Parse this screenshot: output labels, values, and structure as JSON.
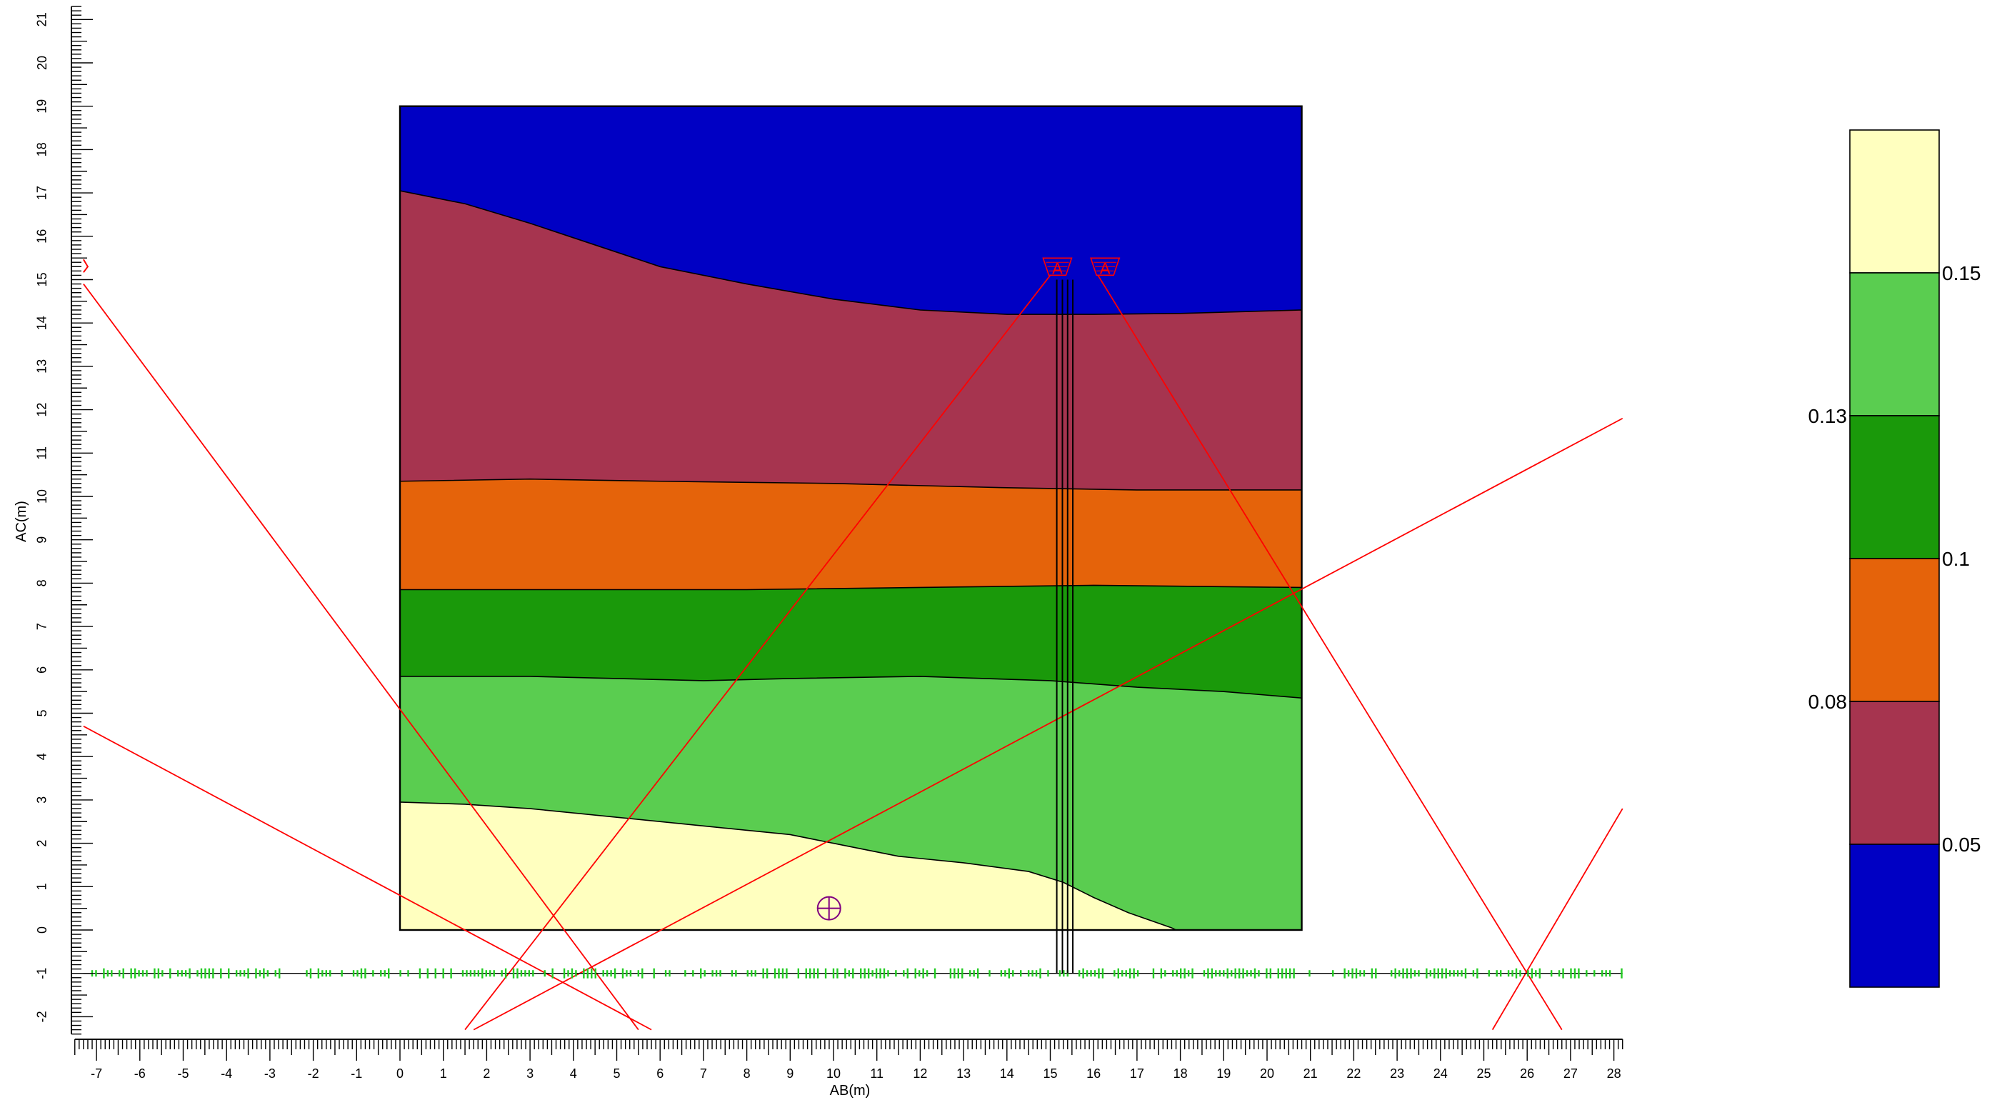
{
  "chart_data": {
    "type": "heatmap",
    "xlabel": "AB(m)",
    "ylabel": "AC(m)",
    "xlim": [
      -7.5,
      28.2
    ],
    "ylim": [
      -2.4,
      21.3
    ],
    "x_ticks": [
      "-7",
      "-6",
      "-5",
      "-4",
      "-3",
      "-2",
      "-1",
      "0",
      "1",
      "2",
      "3",
      "4",
      "5",
      "6",
      "7",
      "8",
      "9",
      "10",
      "11",
      "12",
      "13",
      "14",
      "15",
      "16",
      "17",
      "18",
      "19",
      "20",
      "21",
      "22",
      "23",
      "24",
      "25",
      "26",
      "27",
      "28"
    ],
    "y_ticks": [
      "-2",
      "-1",
      "0",
      "1",
      "2",
      "3",
      "4",
      "5",
      "6",
      "7",
      "8",
      "9",
      "10",
      "11",
      "12",
      "13",
      "14",
      "15",
      "16",
      "17",
      "18",
      "19",
      "20",
      "21"
    ],
    "domain": {
      "x": [
        0,
        20.8
      ],
      "y": [
        0,
        19
      ]
    },
    "colors": [
      "#0000c4",
      "#a6344f",
      "#e5630a",
      "#1a990a",
      "#5acd50",
      "#ffffbf"
    ],
    "layers": [
      {
        "name": "level-1",
        "upper": [
          [
            0,
            19
          ],
          [
            20.8,
            19
          ]
        ]
      },
      {
        "name": "level-2",
        "upper": [
          [
            0,
            17.05
          ],
          [
            1.5,
            16.75
          ],
          [
            3,
            16.3
          ],
          [
            4.5,
            15.8
          ],
          [
            6,
            15.3
          ],
          [
            8,
            14.9
          ],
          [
            10,
            14.55
          ],
          [
            12,
            14.3
          ],
          [
            14,
            14.2
          ],
          [
            16,
            14.2
          ],
          [
            18,
            14.22
          ],
          [
            20.8,
            14.3
          ]
        ]
      },
      {
        "name": "level-3",
        "upper": [
          [
            0,
            10.35
          ],
          [
            3,
            10.4
          ],
          [
            6,
            10.35
          ],
          [
            10,
            10.3
          ],
          [
            14,
            10.2
          ],
          [
            17,
            10.15
          ],
          [
            20.8,
            10.15
          ]
        ]
      },
      {
        "name": "level-4",
        "upper": [
          [
            0,
            7.85
          ],
          [
            4,
            7.85
          ],
          [
            8,
            7.85
          ],
          [
            12,
            7.9
          ],
          [
            16,
            7.95
          ],
          [
            20.8,
            7.9
          ]
        ]
      },
      {
        "name": "level-5",
        "upper": [
          [
            0,
            5.85
          ],
          [
            3,
            5.85
          ],
          [
            5,
            5.8
          ],
          [
            7,
            5.75
          ],
          [
            9,
            5.8
          ],
          [
            12,
            5.85
          ],
          [
            15,
            5.75
          ],
          [
            17,
            5.6
          ],
          [
            19,
            5.5
          ],
          [
            20.8,
            5.35
          ]
        ]
      },
      {
        "name": "level-6",
        "upper": [
          [
            0,
            2.95
          ],
          [
            1.5,
            2.9
          ],
          [
            3,
            2.8
          ],
          [
            5,
            2.6
          ],
          [
            7,
            2.4
          ],
          [
            9,
            2.2
          ],
          [
            10.5,
            1.9
          ],
          [
            11.5,
            1.7
          ],
          [
            13,
            1.55
          ],
          [
            14.5,
            1.35
          ],
          [
            15.3,
            1.1
          ],
          [
            16,
            0.75
          ],
          [
            16.8,
            0.4
          ],
          [
            17.8,
            0.05
          ],
          [
            17.9,
            0
          ]
        ]
      }
    ],
    "rays": [
      {
        "x1": -7.3,
        "y1": 14.9,
        "x2": 5.5,
        "y2": -2.3
      },
      {
        "x1": -7.3,
        "y1": 4.7,
        "x2": 5.8,
        "y2": -2.3
      },
      {
        "x1": 1.5,
        "y1": -2.3,
        "x2": 15.0,
        "y2": 15.1
      },
      {
        "x1": 1.7,
        "y1": -2.3,
        "x2": 28.2,
        "y2": 11.8
      },
      {
        "x1": 16.1,
        "y1": 15.1,
        "x2": 26.8,
        "y2": -2.3
      },
      {
        "x1": 25.2,
        "y1": -2.3,
        "x2": 28.2,
        "y2": 2.8
      }
    ],
    "boreholes": [
      {
        "x": 15.15,
        "y_top": 15.0,
        "y_bottom": -1.0
      },
      {
        "x": 15.28,
        "y_top": 15.0,
        "y_bottom": -1.0
      },
      {
        "x": 15.4,
        "y_top": 15.0,
        "y_bottom": -1.0
      },
      {
        "x": 15.52,
        "y_top": 15.0,
        "y_bottom": -1.0
      }
    ],
    "sources": [
      {
        "x": 14.9,
        "y": 15.3,
        "label": "A"
      },
      {
        "x": 16.0,
        "y": 15.3,
        "label": "A"
      }
    ],
    "receiver_line": {
      "y": -1.0,
      "x_start": -7.3,
      "x_end": 28.2
    },
    "target_marker": {
      "x": 9.6,
      "y": 0.5
    },
    "edge_marker": {
      "x": -7.3,
      "y": 15.3
    },
    "colorbar": {
      "tick_labels": [
        "0.15",
        "0.13",
        "0.1",
        "0.08",
        "0.05"
      ],
      "colors_top_to_bottom": [
        "#ffffbf",
        "#5acd50",
        "#1a990a",
        "#e5630a",
        "#a6344f",
        "#0000c4"
      ]
    }
  }
}
